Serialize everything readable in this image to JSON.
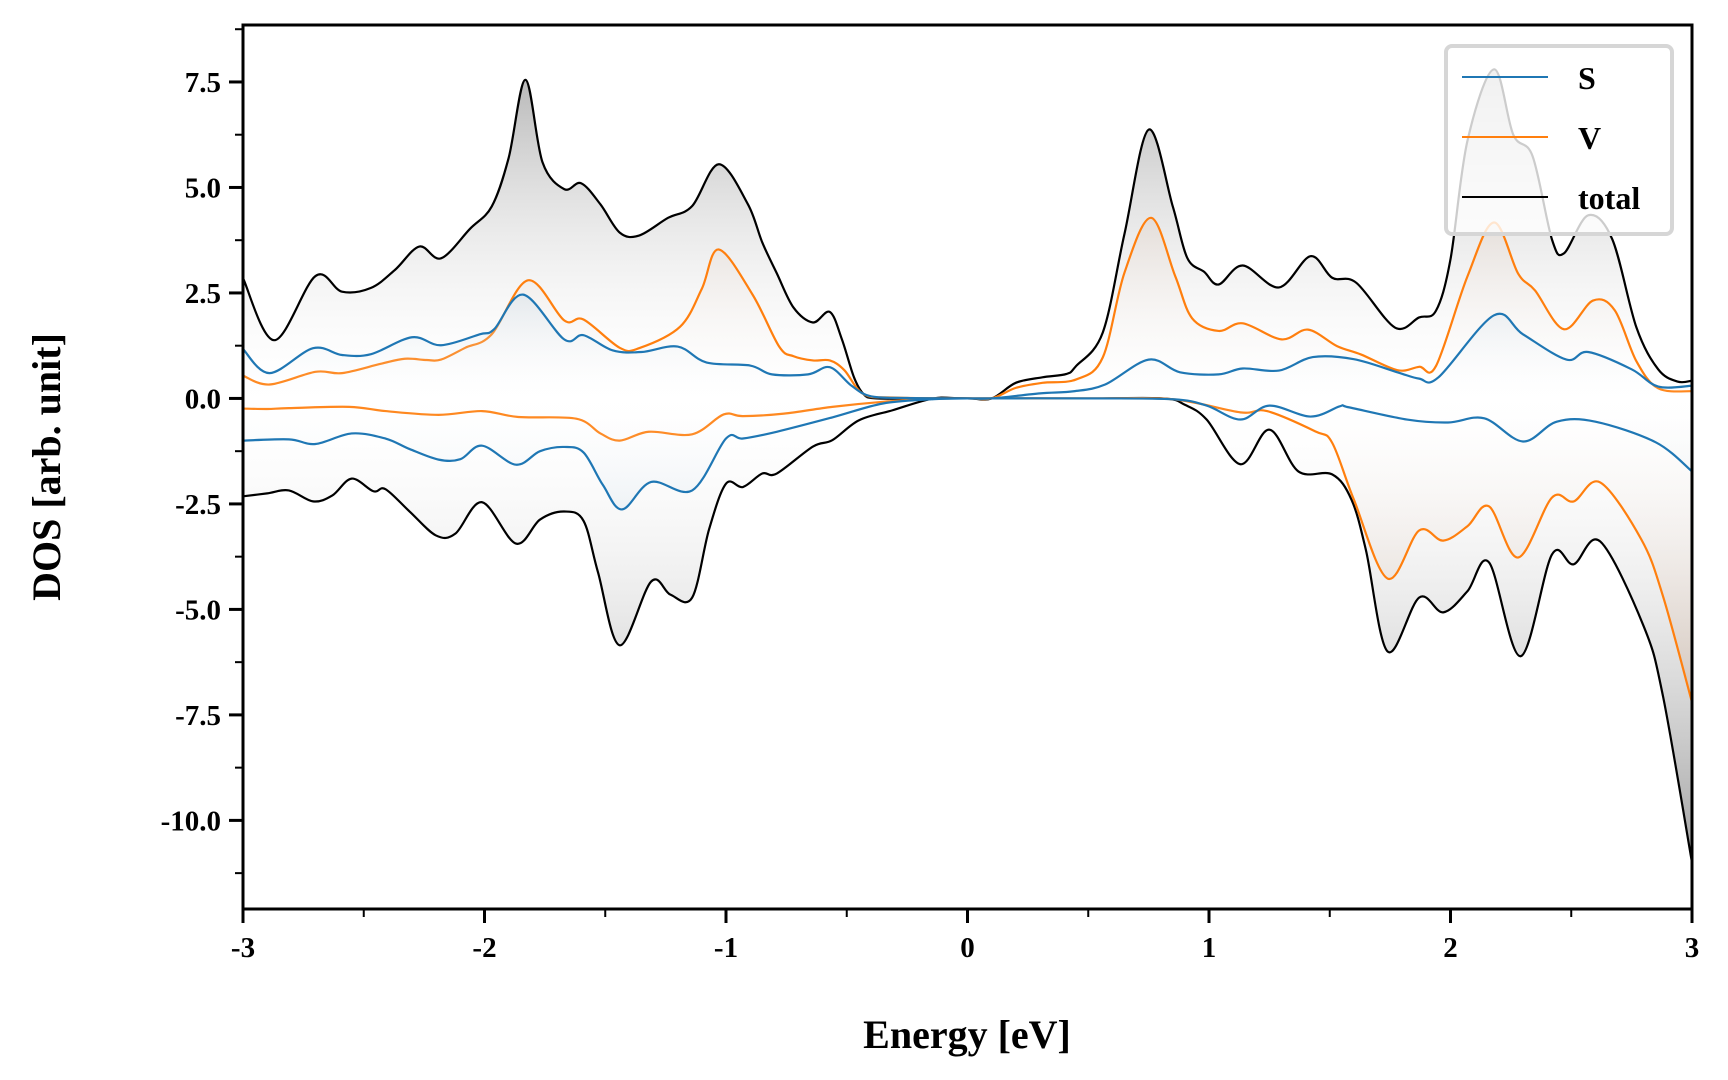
{
  "chart_data": {
    "type": "area",
    "title": "",
    "xlabel": "Energy [eV]",
    "ylabel": "DOS [arb. unit]",
    "xlim": [
      -3,
      3
    ],
    "ylim": [
      -12.1,
      8.85
    ],
    "xticks": [
      -3,
      -2,
      -1,
      0,
      1,
      2,
      3
    ],
    "xtick_labels": [
      "-3",
      "-2",
      "-1",
      "0",
      "1",
      "2",
      "3"
    ],
    "yticks": [
      7.5,
      5.0,
      2.5,
      0.0,
      -2.5,
      -5.0,
      -7.5,
      -10.0
    ],
    "ytick_labels": [
      "7.5",
      "5.0",
      "2.5",
      "0.0",
      "-2.5",
      "-5.0",
      "-7.5",
      "-10.0"
    ],
    "grid": false,
    "legend_position": "top-right",
    "series": [
      {
        "name": "total",
        "color": "#000000",
        "fill_color": "#808080",
        "spin_up": {
          "x": [
            -3.0,
            -2.87,
            -2.7,
            -2.59,
            -2.47,
            -2.37,
            -2.27,
            -2.18,
            -2.06,
            -1.97,
            -1.9,
            -1.83,
            -1.76,
            -1.67,
            -1.6,
            -1.52,
            -1.44,
            -1.36,
            -1.24,
            -1.14,
            -1.03,
            -0.91,
            -0.85,
            -0.79,
            -0.72,
            -0.64,
            -0.57,
            -0.52,
            -0.47,
            -0.43,
            -0.38,
            -0.2,
            0.0,
            0.1,
            0.2,
            0.31,
            0.41,
            0.45,
            0.56,
            0.65,
            0.75,
            0.85,
            0.91,
            0.98,
            1.04,
            1.14,
            1.29,
            1.42,
            1.51,
            1.61,
            1.77,
            1.87,
            1.94,
            2.0,
            2.07,
            2.18,
            2.26,
            2.34,
            2.42,
            2.47,
            2.57,
            2.67,
            2.77,
            2.86,
            2.94,
            3.0
          ],
          "y": [
            2.85,
            1.38,
            2.9,
            2.53,
            2.62,
            3.05,
            3.6,
            3.32,
            4.02,
            4.55,
            5.7,
            7.55,
            5.6,
            4.96,
            5.1,
            4.6,
            3.93,
            3.86,
            4.28,
            4.56,
            5.55,
            4.61,
            3.7,
            2.97,
            2.15,
            1.8,
            2.05,
            1.4,
            0.5,
            0.1,
            0.0,
            0.0,
            0.0,
            0.0,
            0.37,
            0.5,
            0.58,
            0.77,
            1.56,
            3.9,
            6.37,
            4.55,
            3.33,
            3.0,
            2.7,
            3.15,
            2.63,
            3.37,
            2.86,
            2.74,
            1.68,
            1.92,
            2.08,
            3.3,
            6.1,
            7.8,
            6.25,
            5.74,
            3.77,
            3.44,
            4.34,
            3.77,
            1.68,
            0.69,
            0.4,
            0.42
          ]
        },
        "spin_down": {
          "x": [
            -3.0,
            -2.9,
            -2.81,
            -2.71,
            -2.63,
            -2.55,
            -2.46,
            -2.41,
            -2.31,
            -2.2,
            -2.12,
            -2.01,
            -1.87,
            -1.77,
            -1.67,
            -1.59,
            -1.53,
            -1.44,
            -1.31,
            -1.23,
            -1.14,
            -1.07,
            -1.0,
            -0.93,
            -0.85,
            -0.79,
            -0.64,
            -0.56,
            -0.45,
            -0.31,
            -0.14,
            0.0,
            0.5,
            0.81,
            0.9,
            0.99,
            1.13,
            1.25,
            1.37,
            1.51,
            1.59,
            1.65,
            1.74,
            1.87,
            1.97,
            2.07,
            2.16,
            2.29,
            2.42,
            2.51,
            2.62,
            2.8,
            2.88,
            3.0
          ],
          "y": [
            -2.32,
            -2.25,
            -2.18,
            -2.44,
            -2.3,
            -1.9,
            -2.2,
            -2.15,
            -2.68,
            -3.25,
            -3.2,
            -2.46,
            -3.44,
            -2.87,
            -2.68,
            -2.9,
            -4.12,
            -5.85,
            -4.34,
            -4.65,
            -4.72,
            -3.1,
            -2.02,
            -2.1,
            -1.78,
            -1.78,
            -1.14,
            -0.99,
            -0.52,
            -0.28,
            0.0,
            0.0,
            0.0,
            0.0,
            -0.15,
            -0.5,
            -1.56,
            -0.74,
            -1.73,
            -1.8,
            -2.4,
            -3.6,
            -6.0,
            -4.72,
            -5.07,
            -4.57,
            -3.89,
            -6.11,
            -3.7,
            -3.93,
            -3.39,
            -5.4,
            -7.06,
            -11.0
          ]
        }
      },
      {
        "name": "V",
        "color": "#ff7f0e",
        "fill_color": "#b07850",
        "spin_up": {
          "x": [
            -3.0,
            -2.89,
            -2.7,
            -2.59,
            -2.43,
            -2.33,
            -2.24,
            -2.18,
            -2.08,
            -1.97,
            -1.82,
            -1.67,
            -1.59,
            -1.44,
            -1.36,
            -1.19,
            -1.1,
            -1.03,
            -0.89,
            -0.78,
            -0.72,
            -0.64,
            -0.57,
            -0.51,
            -0.43,
            -0.3,
            0.0,
            0.1,
            0.2,
            0.31,
            0.45,
            0.56,
            0.65,
            0.76,
            0.86,
            0.93,
            1.04,
            1.14,
            1.3,
            1.41,
            1.53,
            1.63,
            1.78,
            1.87,
            1.94,
            2.07,
            2.18,
            2.28,
            2.35,
            2.47,
            2.59,
            2.68,
            2.77,
            2.86,
            3.0
          ],
          "y": [
            0.54,
            0.33,
            0.63,
            0.6,
            0.82,
            0.94,
            0.91,
            0.92,
            1.2,
            1.52,
            2.8,
            1.85,
            1.87,
            1.2,
            1.19,
            1.7,
            2.6,
            3.53,
            2.46,
            1.23,
            1.0,
            0.9,
            0.9,
            0.67,
            0.1,
            0.02,
            0.0,
            0.0,
            0.25,
            0.37,
            0.45,
            0.97,
            2.98,
            4.28,
            2.9,
            1.9,
            1.6,
            1.78,
            1.4,
            1.63,
            1.24,
            1.04,
            0.67,
            0.75,
            0.77,
            2.89,
            4.17,
            2.96,
            2.56,
            1.64,
            2.32,
            2.09,
            0.88,
            0.24,
            0.17
          ]
        },
        "spin_down": {
          "x": [
            -3.0,
            -2.9,
            -2.81,
            -2.56,
            -2.41,
            -2.19,
            -2.01,
            -1.86,
            -1.62,
            -1.52,
            -1.44,
            -1.32,
            -1.14,
            -1.01,
            -0.93,
            -0.76,
            -0.56,
            -0.35,
            -0.15,
            0.0,
            0.5,
            0.85,
            1.13,
            1.24,
            1.44,
            1.51,
            1.6,
            1.74,
            1.87,
            1.97,
            2.07,
            2.16,
            2.28,
            2.42,
            2.51,
            2.62,
            2.79,
            2.88,
            3.0
          ],
          "y": [
            -0.24,
            -0.25,
            -0.23,
            -0.2,
            -0.3,
            -0.39,
            -0.3,
            -0.44,
            -0.48,
            -0.83,
            -1.0,
            -0.79,
            -0.85,
            -0.38,
            -0.42,
            -0.36,
            -0.2,
            -0.08,
            -0.01,
            0.0,
            0.0,
            -0.02,
            -0.33,
            -0.3,
            -0.78,
            -1.05,
            -2.4,
            -4.27,
            -3.13,
            -3.37,
            -3.03,
            -2.56,
            -3.77,
            -2.35,
            -2.44,
            -1.99,
            -3.34,
            -4.69,
            -7.2
          ]
        }
      },
      {
        "name": "S",
        "color": "#1f77b4",
        "fill_color": "#1f6aa5",
        "spin_up": {
          "x": [
            -3.0,
            -2.89,
            -2.71,
            -2.59,
            -2.47,
            -2.3,
            -2.18,
            -2.02,
            -1.96,
            -1.84,
            -1.67,
            -1.59,
            -1.47,
            -1.35,
            -1.2,
            -1.08,
            -0.9,
            -0.81,
            -0.66,
            -0.57,
            -0.48,
            -0.4,
            -0.25,
            0.0,
            0.1,
            0.3,
            0.44,
            0.57,
            0.75,
            0.88,
            1.04,
            1.14,
            1.29,
            1.43,
            1.6,
            1.78,
            1.87,
            1.95,
            2.18,
            2.3,
            2.48,
            2.57,
            2.75,
            2.86,
            3.0
          ],
          "y": [
            1.17,
            0.6,
            1.19,
            1.03,
            1.05,
            1.45,
            1.26,
            1.52,
            1.64,
            2.46,
            1.4,
            1.5,
            1.14,
            1.1,
            1.23,
            0.85,
            0.78,
            0.57,
            0.57,
            0.74,
            0.3,
            0.05,
            0.01,
            0.0,
            0.0,
            0.12,
            0.17,
            0.33,
            0.92,
            0.62,
            0.57,
            0.71,
            0.66,
            0.98,
            0.93,
            0.62,
            0.47,
            0.5,
            1.97,
            1.52,
            0.92,
            1.1,
            0.69,
            0.28,
            0.3
          ]
        },
        "spin_down": {
          "x": [
            -3.0,
            -2.81,
            -2.7,
            -2.55,
            -2.41,
            -2.31,
            -2.19,
            -2.1,
            -2.01,
            -1.87,
            -1.77,
            -1.67,
            -1.59,
            -1.51,
            -1.43,
            -1.31,
            -1.14,
            -1.0,
            -0.93,
            -0.79,
            -0.56,
            -0.35,
            -0.15,
            0.0,
            0.5,
            0.85,
            0.99,
            1.13,
            1.25,
            1.42,
            1.54,
            1.57,
            1.82,
            1.99,
            2.14,
            2.3,
            2.44,
            2.6,
            2.85,
            3.0
          ],
          "y": [
            -1.0,
            -0.97,
            -1.08,
            -0.83,
            -0.95,
            -1.2,
            -1.45,
            -1.44,
            -1.12,
            -1.57,
            -1.25,
            -1.15,
            -1.28,
            -2.05,
            -2.63,
            -1.98,
            -2.18,
            -0.95,
            -0.95,
            -0.79,
            -0.45,
            -0.12,
            -0.02,
            0.0,
            0.0,
            -0.02,
            -0.17,
            -0.5,
            -0.17,
            -0.43,
            -0.19,
            -0.2,
            -0.5,
            -0.57,
            -0.47,
            -1.02,
            -0.55,
            -0.55,
            -1.04,
            -1.73
          ]
        }
      }
    ],
    "legend": [
      {
        "label": "S",
        "color": "#1f77b4"
      },
      {
        "label": "V",
        "color": "#ff7f0e"
      },
      {
        "label": "total",
        "color": "#000000"
      }
    ]
  }
}
